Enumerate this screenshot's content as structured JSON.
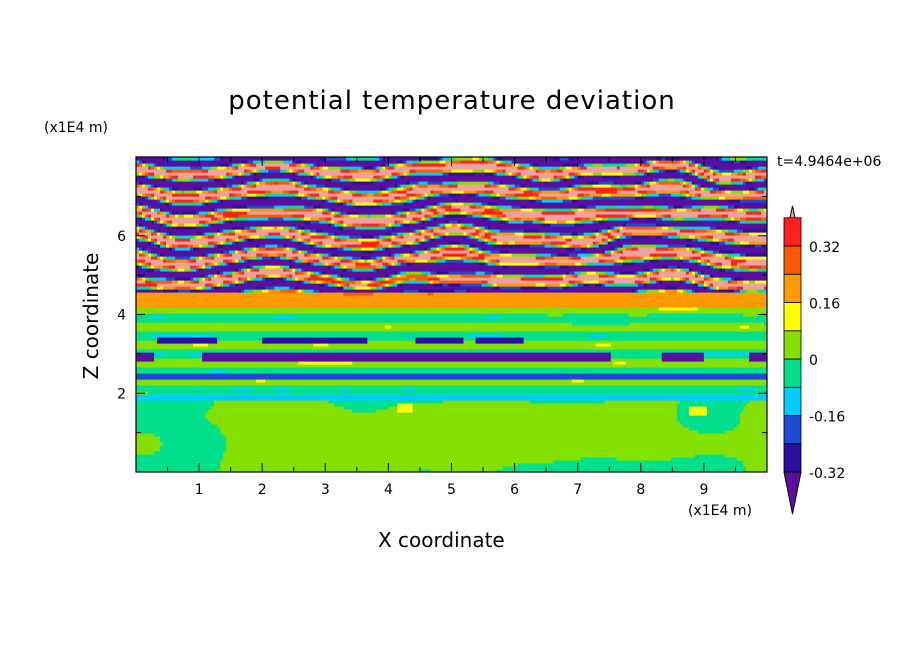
{
  "chart_data": {
    "type": "heatmap",
    "title": "potential temperature deviation",
    "time_label": "t=4.9464e+06",
    "xlabel": "X coordinate",
    "ylabel": "Z coordinate",
    "x_unit": "(x1E4 m)",
    "z_unit": "(x1E4 m)",
    "x_range": [
      0,
      10
    ],
    "z_range": [
      0,
      8
    ],
    "x_ticks": [
      "1",
      "2",
      "3",
      "4",
      "5",
      "6",
      "7",
      "8",
      "9"
    ],
    "z_ticks": [
      "2",
      "4",
      "6"
    ],
    "x_tick_values": [
      1,
      2,
      3,
      4,
      5,
      6,
      7,
      8,
      9
    ],
    "z_tick_values": [
      2,
      4,
      6
    ],
    "colorbar": {
      "tick_labels": [
        "0.32",
        "0.16",
        "0",
        "-0.16",
        "-0.32"
      ],
      "tick_values": [
        0.32,
        0.16,
        0,
        -0.16,
        -0.32
      ],
      "levels": [
        -0.4,
        -0.32,
        -0.24,
        -0.16,
        -0.08,
        0,
        0.08,
        0.16,
        0.24,
        0.32,
        0.4
      ],
      "colors": [
        "#5a0fa0",
        "#2a0fa0",
        "#1e4bd2",
        "#00ccff",
        "#00e08c",
        "#84e000",
        "#ffff00",
        "#ff9a00",
        "#ff5a00",
        "#ff2020",
        "#f0a0a0"
      ],
      "extend": "both"
    },
    "bands": [
      {
        "z_range": [
          0,
          2.0
        ],
        "pattern": "mixed green and light-green, near zero"
      },
      {
        "z_range": [
          2.0,
          4.0
        ],
        "pattern": "horizontal layers of green, light-green, cyan with thin blue streaks"
      },
      {
        "z_range": [
          4.0,
          4.5
        ],
        "pattern": "orange and yellow layer"
      },
      {
        "z_range": [
          4.5,
          8.0
        ],
        "pattern": "alternating pink and purple streaks with blue/cyan transitions"
      }
    ]
  }
}
